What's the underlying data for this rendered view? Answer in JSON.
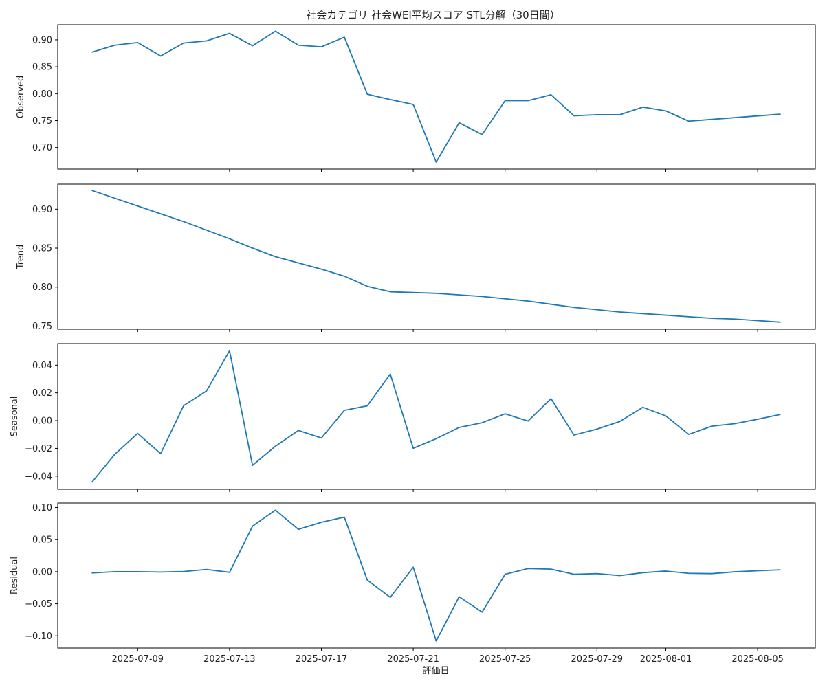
{
  "figure": {
    "title": "社会カテゴリ 社会WEI平均スコア STL分解（30日間）",
    "xlabel": "評価日"
  },
  "chart_data": [
    {
      "type": "line",
      "ylabel": "Observed",
      "line_color": "#1f77b4",
      "x": [
        "2025-07-07",
        "2025-07-08",
        "2025-07-09",
        "2025-07-10",
        "2025-07-11",
        "2025-07-12",
        "2025-07-13",
        "2025-07-14",
        "2025-07-15",
        "2025-07-16",
        "2025-07-17",
        "2025-07-18",
        "2025-07-19",
        "2025-07-20",
        "2025-07-21",
        "2025-07-22",
        "2025-07-23",
        "2025-07-24",
        "2025-07-25",
        "2025-07-26",
        "2025-07-27",
        "2025-07-28",
        "2025-07-29",
        "2025-07-30",
        "2025-07-31",
        "2025-08-01",
        "2025-08-02",
        "2025-08-03",
        "2025-08-04",
        "2025-08-05",
        "2025-08-06"
      ],
      "values": [
        0.877,
        0.89,
        0.895,
        0.87,
        0.894,
        0.898,
        0.912,
        0.889,
        0.916,
        0.89,
        0.887,
        0.905,
        0.799,
        0.789,
        0.78,
        0.673,
        0.746,
        0.724,
        0.787,
        0.787,
        0.798,
        0.759,
        0.761,
        0.761,
        0.775,
        0.768,
        0.749,
        null,
        null,
        null,
        0.762
      ],
      "ylim": [
        0.66,
        0.928
      ],
      "yticks": [
        "0.70",
        "0.75",
        "0.80",
        "0.85",
        "0.90"
      ],
      "xticks": [
        "2025-07-09",
        "2025-07-13",
        "2025-07-17",
        "2025-07-21",
        "2025-07-25",
        "2025-07-29",
        "2025-08-01",
        "2025-08-05"
      ],
      "grid": false
    },
    {
      "type": "line",
      "ylabel": "Trend",
      "line_color": "#1f77b4",
      "x": [
        "2025-07-07",
        "2025-07-08",
        "2025-07-09",
        "2025-07-10",
        "2025-07-11",
        "2025-07-12",
        "2025-07-13",
        "2025-07-14",
        "2025-07-15",
        "2025-07-16",
        "2025-07-17",
        "2025-07-18",
        "2025-07-19",
        "2025-07-20",
        "2025-07-21",
        "2025-07-22",
        "2025-07-23",
        "2025-07-24",
        "2025-07-25",
        "2025-07-26",
        "2025-07-27",
        "2025-07-28",
        "2025-07-29",
        "2025-07-30",
        "2025-07-31",
        "2025-08-01",
        "2025-08-02",
        "2025-08-03",
        "2025-08-04",
        "2025-08-05",
        "2025-08-06"
      ],
      "values": [
        0.924,
        0.914,
        0.904,
        0.894,
        0.884,
        0.873,
        0.862,
        0.85,
        0.839,
        0.831,
        0.823,
        0.814,
        0.801,
        0.794,
        0.793,
        0.792,
        0.79,
        0.788,
        0.785,
        0.782,
        0.778,
        0.774,
        0.771,
        0.768,
        0.766,
        0.764,
        0.762,
        0.76,
        0.759,
        0.757,
        0.755
      ],
      "ylim": [
        0.746,
        0.932
      ],
      "yticks": [
        "0.75",
        "0.80",
        "0.85",
        "0.90"
      ],
      "xticks": [
        "2025-07-09",
        "2025-07-13",
        "2025-07-17",
        "2025-07-21",
        "2025-07-25",
        "2025-07-29",
        "2025-08-01",
        "2025-08-05"
      ],
      "grid": false
    },
    {
      "type": "line",
      "ylabel": "Seasonal",
      "line_color": "#1f77b4",
      "x": [
        "2025-07-07",
        "2025-07-08",
        "2025-07-09",
        "2025-07-10",
        "2025-07-11",
        "2025-07-12",
        "2025-07-13",
        "2025-07-14",
        "2025-07-15",
        "2025-07-16",
        "2025-07-17",
        "2025-07-18",
        "2025-07-19",
        "2025-07-20",
        "2025-07-21",
        "2025-07-22",
        "2025-07-23",
        "2025-07-24",
        "2025-07-25",
        "2025-07-26",
        "2025-07-27",
        "2025-07-28",
        "2025-07-29",
        "2025-07-30",
        "2025-07-31",
        "2025-08-01",
        "2025-08-02",
        "2025-08-03",
        "2025-08-04",
        "2025-08-05",
        "2025-08-06"
      ],
      "values": [
        -0.0445,
        -0.0243,
        -0.0092,
        -0.0238,
        0.0108,
        0.0214,
        0.0504,
        -0.0322,
        -0.0184,
        -0.0071,
        -0.0125,
        0.0074,
        0.0107,
        0.0336,
        -0.0199,
        -0.013,
        -0.0049,
        -0.0015,
        0.0049,
        -0.0003,
        0.0158,
        -0.0104,
        -0.0061,
        -0.0006,
        0.0096,
        0.0034,
        -0.0099,
        -0.004,
        -0.0022,
        0.001,
        0.0045
      ],
      "ylim": [
        -0.0495,
        0.0555
      ],
      "yticks": [
        "−0.04",
        "−0.02",
        "0.00",
        "0.02",
        "0.04"
      ],
      "xticks": [
        "2025-07-09",
        "2025-07-13",
        "2025-07-17",
        "2025-07-21",
        "2025-07-25",
        "2025-07-29",
        "2025-08-01",
        "2025-08-05"
      ],
      "grid": false
    },
    {
      "type": "line",
      "ylabel": "Residual",
      "line_color": "#1f77b4",
      "x": [
        "2025-07-07",
        "2025-07-08",
        "2025-07-09",
        "2025-07-10",
        "2025-07-11",
        "2025-07-12",
        "2025-07-13",
        "2025-07-14",
        "2025-07-15",
        "2025-07-16",
        "2025-07-17",
        "2025-07-18",
        "2025-07-19",
        "2025-07-20",
        "2025-07-21",
        "2025-07-22",
        "2025-07-23",
        "2025-07-24",
        "2025-07-25",
        "2025-07-26",
        "2025-07-27",
        "2025-07-28",
        "2025-07-29",
        "2025-07-30",
        "2025-07-31",
        "2025-08-01",
        "2025-08-02",
        "2025-08-03",
        "2025-08-04",
        "2025-08-05",
        "2025-08-06"
      ],
      "values": [
        -0.002,
        0.0,
        0.0,
        -0.0005,
        0.0003,
        0.0035,
        -0.001,
        0.071,
        0.096,
        0.066,
        0.077,
        0.085,
        -0.013,
        -0.04,
        0.007,
        -0.108,
        -0.039,
        -0.063,
        -0.004,
        0.005,
        0.004,
        -0.004,
        -0.003,
        -0.006,
        -0.0015,
        0.001,
        -0.0025,
        -0.003,
        -0.0002,
        0.0015,
        0.003
      ],
      "ylim": [
        -0.119,
        0.107
      ],
      "yticks": [
        "−0.10",
        "−0.05",
        "0.00",
        "0.05",
        "0.10"
      ],
      "xticks": [
        "2025-07-09",
        "2025-07-13",
        "2025-07-17",
        "2025-07-21",
        "2025-07-25",
        "2025-07-29",
        "2025-08-01",
        "2025-08-05"
      ],
      "grid": false
    }
  ]
}
